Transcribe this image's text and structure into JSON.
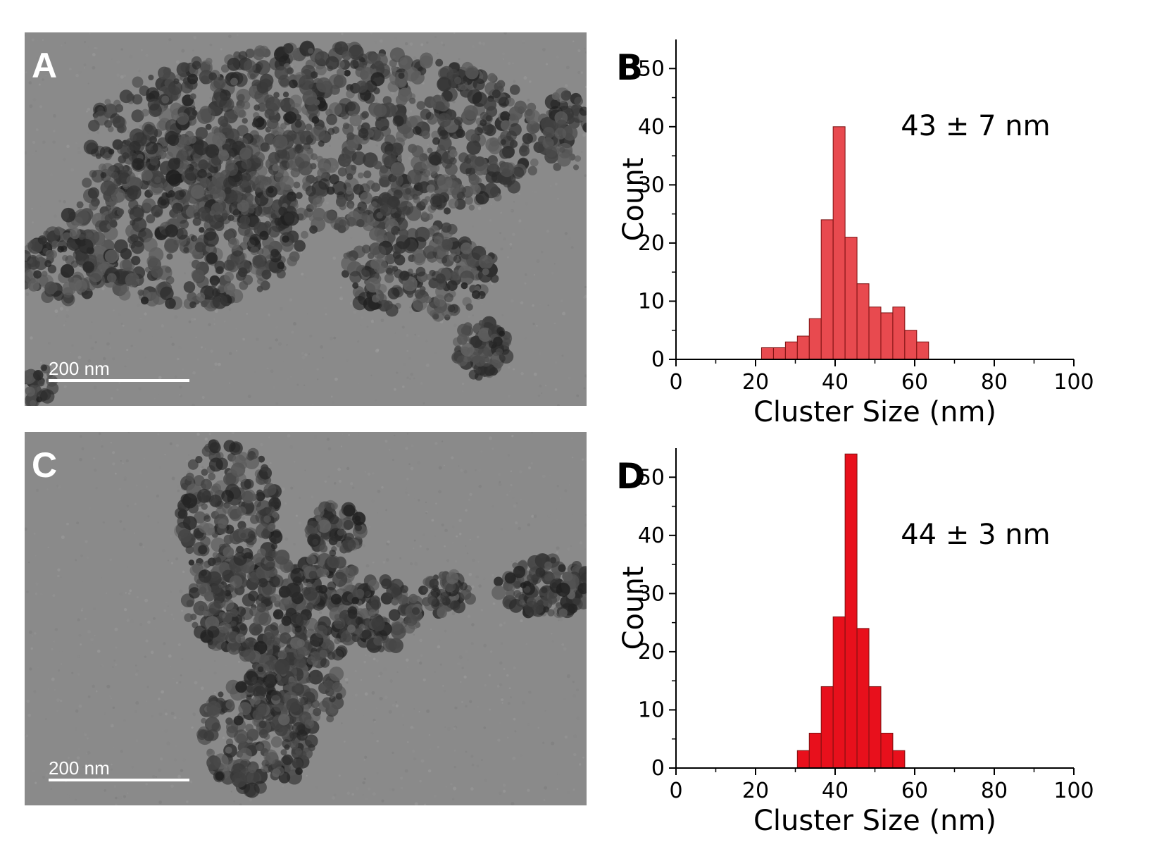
{
  "figure": {
    "panels": [
      {
        "letter": "A",
        "scale_label": "200 nm"
      },
      {
        "letter": "C",
        "scale_label": "200 nm"
      }
    ]
  },
  "colors": {
    "bar_fill_b": "#e84a4f",
    "bar_fill_d": "#e8101c",
    "bar_stroke": "#7a1010",
    "axis": "#000000"
  },
  "chart_data": [
    {
      "type": "bar",
      "panel_letter": "B",
      "annotation": "43 ± 7 nm",
      "xlabel": "Cluster Size (nm)",
      "ylabel": "Count",
      "xlim": [
        0,
        100
      ],
      "ylim": [
        0,
        55
      ],
      "xticks": [
        0,
        20,
        40,
        60,
        80,
        100
      ],
      "yticks": [
        0,
        10,
        20,
        30,
        40,
        50
      ],
      "x": [
        23,
        26,
        29,
        32,
        35,
        38,
        41,
        44,
        47,
        50,
        53,
        56,
        59,
        62
      ],
      "values": [
        2,
        2,
        3,
        4,
        7,
        24,
        40,
        21,
        13,
        9,
        8,
        9,
        5,
        3
      ]
    },
    {
      "type": "bar",
      "panel_letter": "D",
      "annotation": "44 ± 3 nm",
      "xlabel": "Cluster Size (nm)",
      "ylabel": "Count",
      "xlim": [
        0,
        100
      ],
      "ylim": [
        0,
        55
      ],
      "xticks": [
        0,
        20,
        40,
        60,
        80,
        100
      ],
      "yticks": [
        0,
        10,
        20,
        30,
        40,
        50
      ],
      "x": [
        32,
        35,
        38,
        41,
        44,
        47,
        50,
        53,
        56
      ],
      "values": [
        3,
        6,
        14,
        26,
        54,
        24,
        14,
        6,
        3
      ]
    }
  ]
}
